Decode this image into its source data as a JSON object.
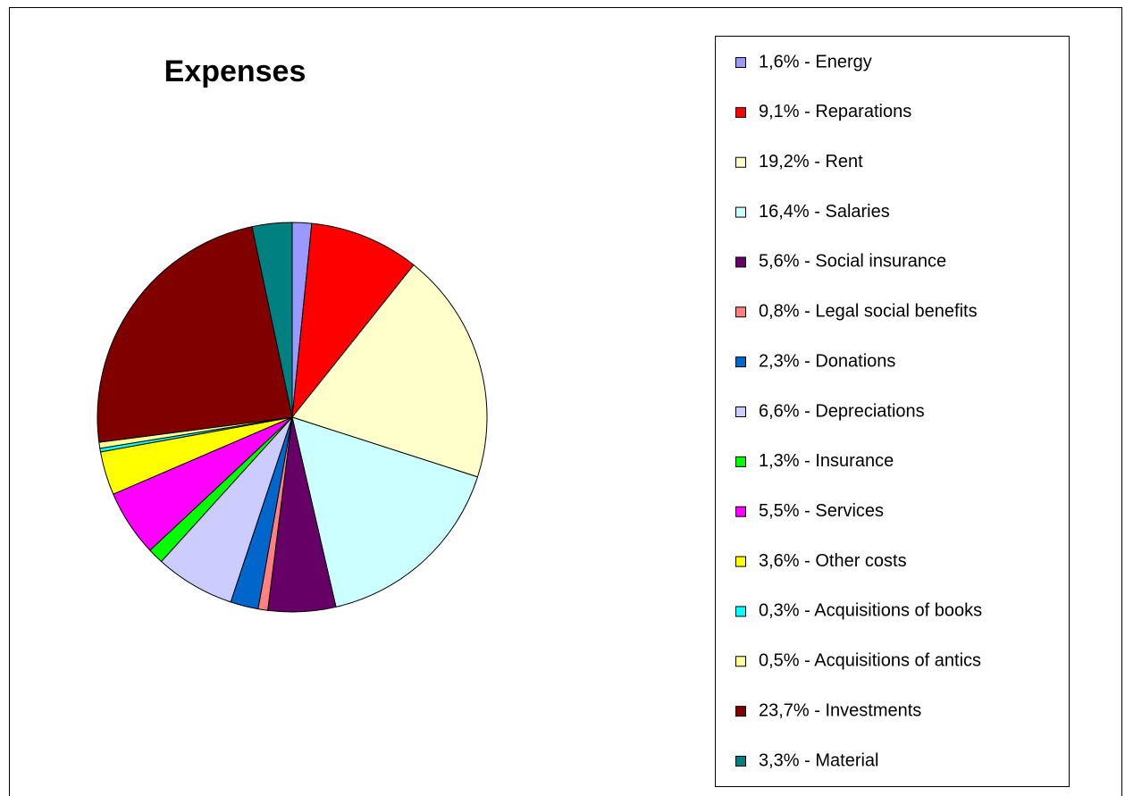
{
  "chart_data": {
    "type": "pie",
    "title": "Expenses",
    "categories": [
      "1,6% - Energy",
      "9,1% - Reparations",
      "19,2% - Rent",
      "16,4% - Salaries",
      "5,6% - Social insurance",
      "0,8% - Legal social benefits",
      "2,3% - Donations",
      "6,6% - Depreciations",
      "1,3% - Insurance",
      "5,5% - Services",
      "3,6% - Other costs",
      "0,3% - Acquisitions of books",
      "0,5% - Acquisitions of antics",
      "23,7% - Investments",
      "3,3% - Material"
    ],
    "values": [
      1.6,
      9.1,
      19.2,
      16.4,
      5.6,
      0.8,
      2.3,
      6.6,
      1.3,
      5.5,
      3.6,
      0.3,
      0.5,
      23.7,
      3.3
    ],
    "colors": [
      "#9999ff",
      "#ff0000",
      "#ffffcc",
      "#ccffff",
      "#660066",
      "#ff8080",
      "#0066cc",
      "#ccccff",
      "#00ff00",
      "#ff00ff",
      "#ffff00",
      "#00ffff",
      "#ffff99",
      "#800000",
      "#008080"
    ],
    "legend": "right"
  }
}
